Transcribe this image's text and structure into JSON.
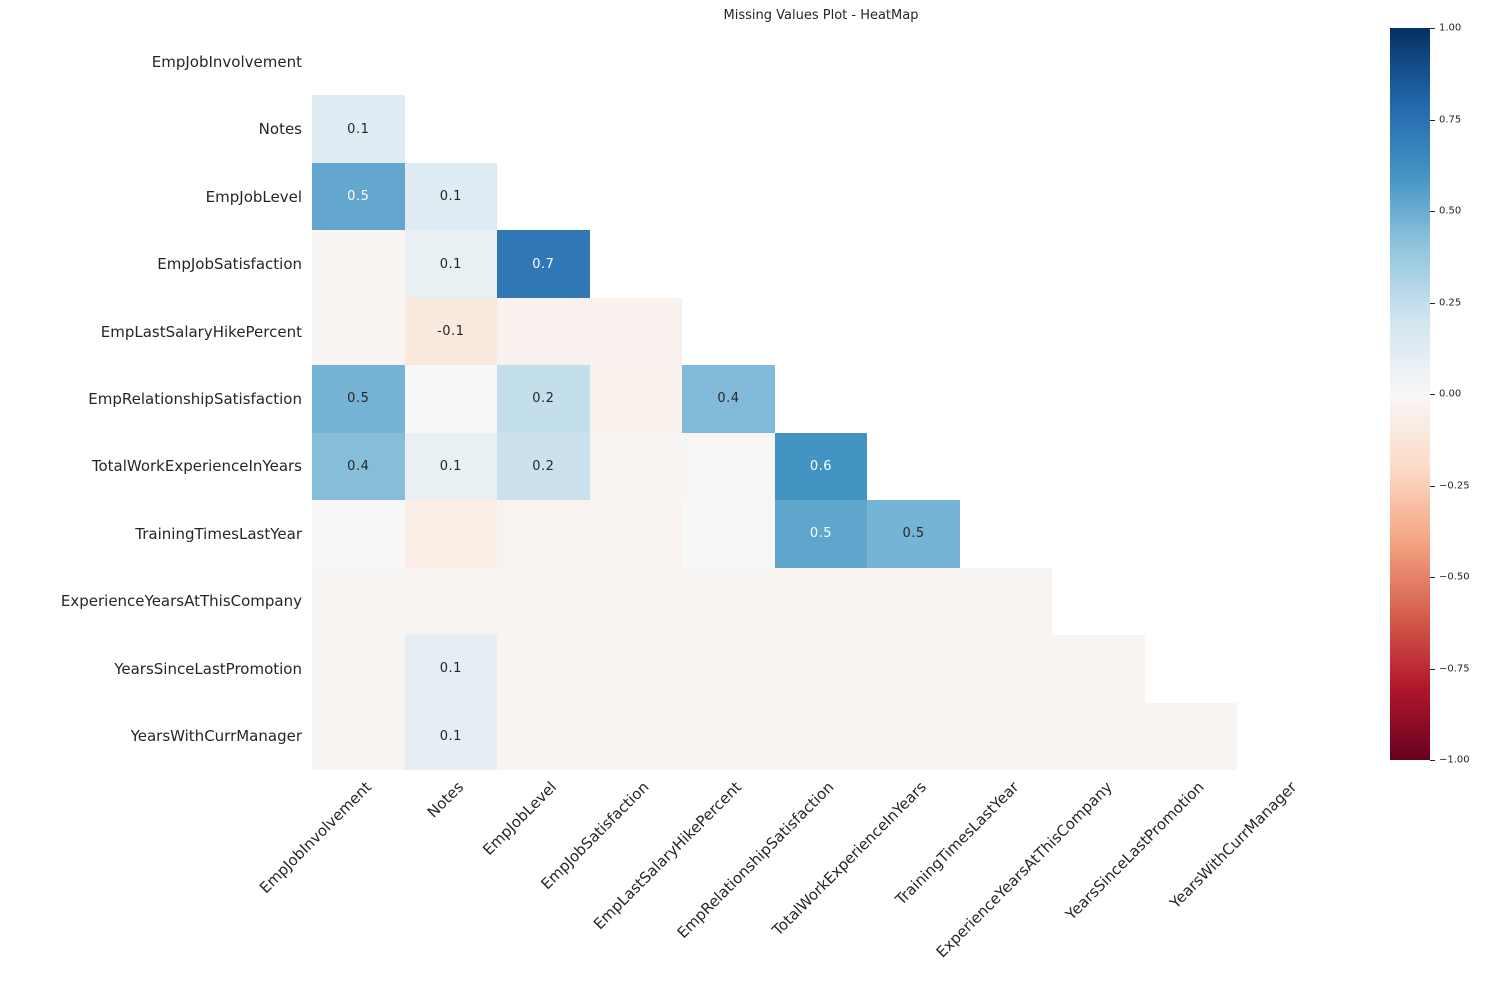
{
  "chart_data": {
    "type": "heatmap",
    "title": "Missing Values Plot - HeatMap",
    "mask": "upper-triangle-including-diagonal",
    "grid": false,
    "legend_position": "colorbar-right",
    "x_labels": [
      "EmpJobInvolvement",
      "Notes",
      "EmpJobLevel",
      "EmpJobSatisfaction",
      "EmpLastSalaryHikePercent",
      "EmpRelationshipSatisfaction",
      "TotalWorkExperienceInYears",
      "TrainingTimesLastYear",
      "ExperienceYearsAtThisCompany",
      "YearsSinceLastPromotion",
      "YearsWithCurrManager"
    ],
    "y_labels": [
      "EmpJobInvolvement",
      "Notes",
      "EmpJobLevel",
      "EmpJobSatisfaction",
      "EmpLastSalaryHikePercent",
      "EmpRelationshipSatisfaction",
      "TotalWorkExperienceInYears",
      "TrainingTimesLastYear",
      "ExperienceYearsAtThisCompany",
      "YearsSinceLastPromotion",
      "YearsWithCurrManager"
    ],
    "vmin": -1,
    "vmax": 1,
    "colormap": {
      "name": "RdBu",
      "anchors": [
        "#67001f",
        "#b2182b",
        "#d6604d",
        "#f4a582",
        "#fddbc7",
        "#f7f7f7",
        "#d1e5f0",
        "#92c5de",
        "#4393c3",
        "#2166ac",
        "#053061"
      ]
    },
    "annotation_colors": {
      "dark": "#262626",
      "light": "#ffffff"
    },
    "matrix": [
      [],
      [
        [
          0.12,
          "0.1",
          "dark"
        ]
      ],
      [
        [
          0.52,
          "0.5",
          "light"
        ],
        [
          0.12,
          "0.1",
          "dark"
        ]
      ],
      [
        [
          -0.02,
          null,
          null
        ],
        [
          0.08,
          "0.1",
          "dark"
        ],
        [
          0.72,
          "0.7",
          "light"
        ]
      ],
      [
        [
          -0.02,
          null,
          null
        ],
        [
          -0.1,
          "-0.1",
          "dark"
        ],
        [
          -0.04,
          null,
          null
        ],
        [
          -0.04,
          null,
          null
        ]
      ],
      [
        [
          0.47,
          "0.5",
          "dark"
        ],
        [
          0.0,
          null,
          null
        ],
        [
          0.24,
          "0.2",
          "dark"
        ],
        [
          -0.05,
          null,
          null
        ],
        [
          0.44,
          "0.4",
          "dark"
        ]
      ],
      [
        [
          0.43,
          "0.4",
          "dark"
        ],
        [
          0.08,
          "0.1",
          "dark"
        ],
        [
          0.22,
          "0.2",
          "dark"
        ],
        [
          -0.02,
          null,
          null
        ],
        [
          -0.01,
          null,
          null
        ],
        [
          0.6,
          "0.6",
          "light"
        ]
      ],
      [
        [
          0.0,
          null,
          null
        ],
        [
          -0.07,
          null,
          null
        ],
        [
          -0.03,
          null,
          null
        ],
        [
          -0.03,
          null,
          null
        ],
        [
          0.0,
          null,
          null
        ],
        [
          0.53,
          "0.5",
          "light"
        ],
        [
          0.47,
          "0.5",
          "dark"
        ]
      ],
      [
        [
          -0.02,
          null,
          null
        ],
        [
          -0.02,
          null,
          null
        ],
        [
          -0.02,
          null,
          null
        ],
        [
          -0.02,
          null,
          null
        ],
        [
          -0.02,
          null,
          null
        ],
        [
          -0.02,
          null,
          null
        ],
        [
          -0.02,
          null,
          null
        ],
        [
          -0.02,
          null,
          null
        ]
      ],
      [
        [
          -0.02,
          null,
          null
        ],
        [
          0.1,
          "0.1",
          "dark"
        ],
        [
          -0.02,
          null,
          null
        ],
        [
          -0.02,
          null,
          null
        ],
        [
          -0.02,
          null,
          null
        ],
        [
          -0.02,
          null,
          null
        ],
        [
          -0.02,
          null,
          null
        ],
        [
          -0.02,
          null,
          null
        ],
        [
          -0.02,
          null,
          null
        ]
      ],
      [
        [
          -0.02,
          null,
          null
        ],
        [
          0.1,
          "0.1",
          "dark"
        ],
        [
          -0.02,
          null,
          null
        ],
        [
          -0.02,
          null,
          null
        ],
        [
          -0.02,
          null,
          null
        ],
        [
          -0.02,
          null,
          null
        ],
        [
          -0.02,
          null,
          null
        ],
        [
          -0.02,
          null,
          null
        ],
        [
          -0.02,
          null,
          null
        ],
        [
          -0.02,
          null,
          null
        ]
      ]
    ],
    "colorbar": {
      "tick_values": [
        1.0,
        0.75,
        0.5,
        0.25,
        0.0,
        -0.25,
        -0.5,
        -0.75,
        -1.0
      ],
      "tick_labels": [
        "1.00",
        "0.75",
        "0.50",
        "0.25",
        "0.00",
        "−0.25",
        "−0.50",
        "−0.75",
        "−1.00"
      ]
    }
  }
}
